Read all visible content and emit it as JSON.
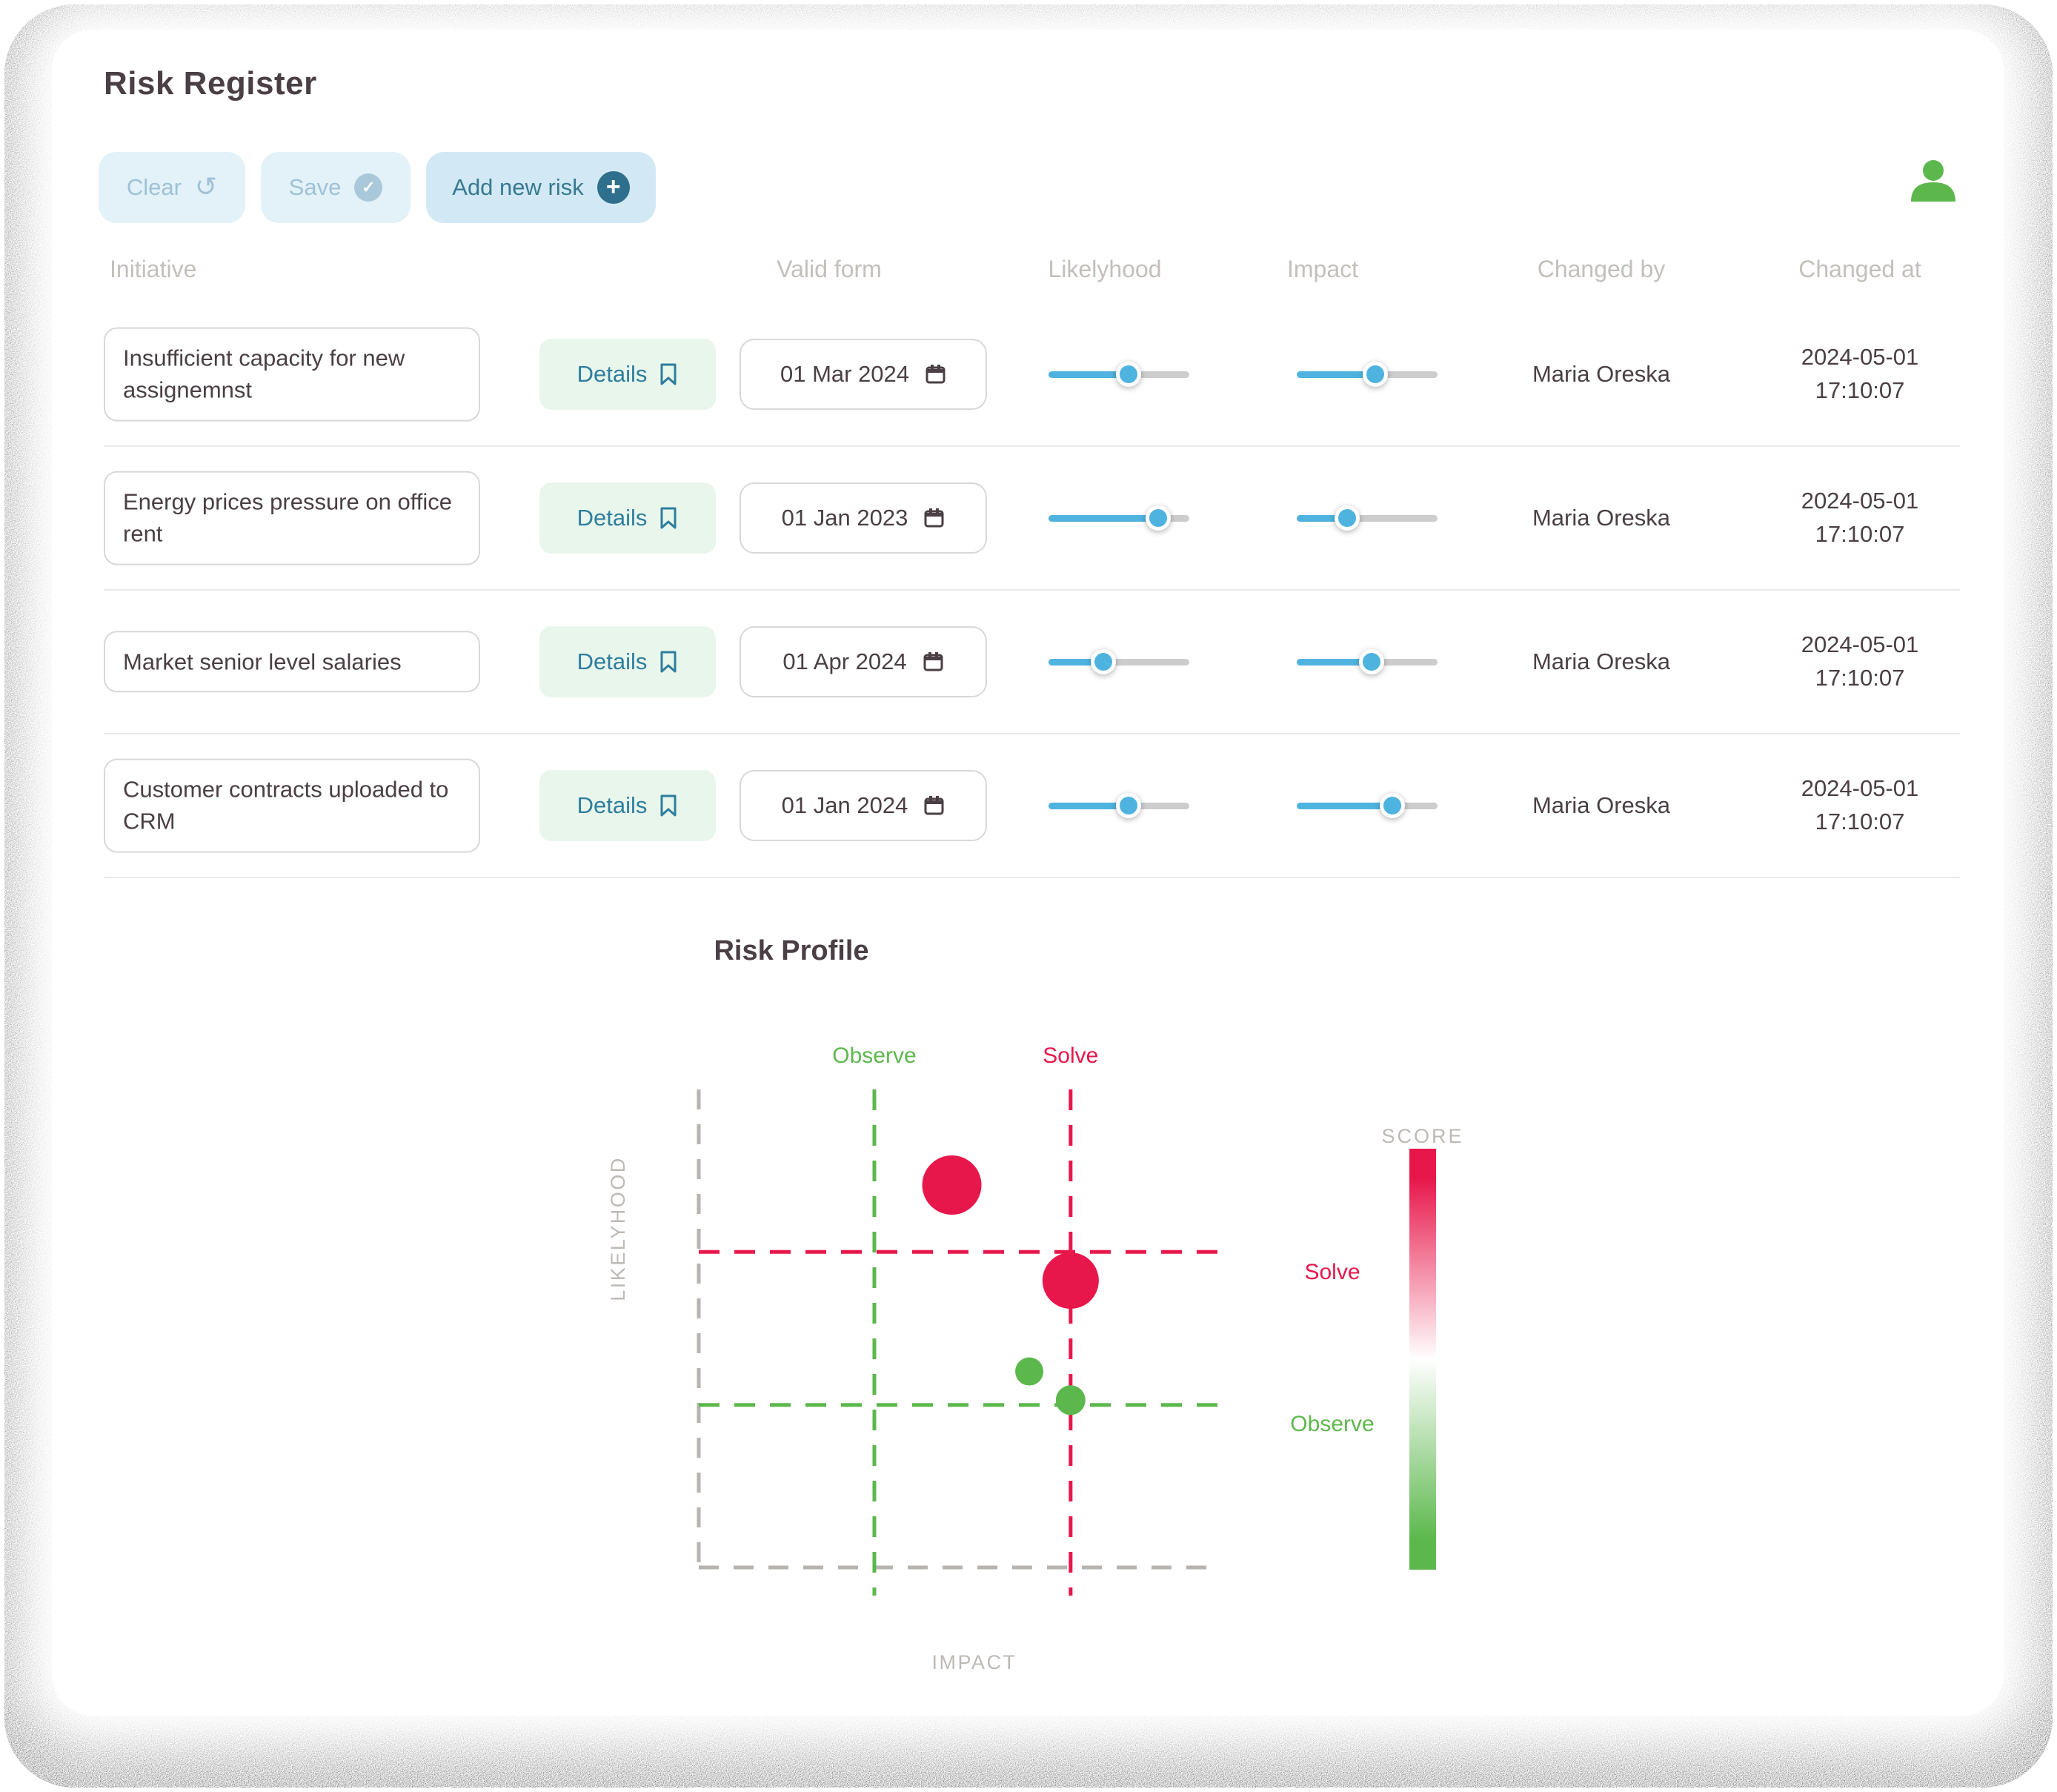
{
  "window": {
    "title": "Risk Register"
  },
  "toolbar": {
    "clear_label": "Clear",
    "save_label": "Save",
    "add_label": "Add new risk",
    "undo_glyph": "↺",
    "check_glyph": "✓",
    "plus_glyph": "+"
  },
  "table": {
    "headers": [
      "Initiative",
      "Valid form",
      "Likelyhood",
      "Impact",
      "Changed by",
      "Changed at"
    ],
    "details_label": "Details",
    "rows": [
      {
        "initiative": "Insufficient capacity for new assignemnst",
        "valid_from": "01 Mar 2024",
        "likelyhood": 57,
        "impact": 56,
        "changed_by": "Maria Oreska",
        "changed_at": "2024-05-01 17:10:07"
      },
      {
        "initiative": "Energy prices pressure on office rent",
        "valid_from": "01 Jan 2023",
        "likelyhood": 78,
        "impact": 36,
        "changed_by": "Maria Oreska",
        "changed_at": "2024-05-01 17:10:07"
      },
      {
        "initiative": "Market senior level salaries",
        "valid_from": "01 Apr 2024",
        "likelyhood": 39,
        "impact": 53,
        "changed_by": "Maria Oreska",
        "changed_at": "2024-05-01 17:10:07"
      },
      {
        "initiative": "Customer contracts uploaded to CRM",
        "valid_from": "01 Jan 2024",
        "likelyhood": 57,
        "impact": 68,
        "changed_by": "Maria Oreska",
        "changed_at": "2024-05-01 17:10:07"
      }
    ]
  },
  "chart_data": {
    "type": "scatter",
    "title": "Risk Profile",
    "xlabel": "IMPACT",
    "ylabel": "LIKELYHOOD",
    "x_range": [
      0,
      10
    ],
    "y_range": [
      0,
      10
    ],
    "grid": "dashed-quadrant-frame",
    "thresholds": {
      "observe": {
        "label": "Observe",
        "x": 3.4,
        "y": 3.4,
        "color": "#5cb84c"
      },
      "solve": {
        "label": "Solve",
        "x": 7.2,
        "y": 6.6,
        "color": "#e8174b"
      }
    },
    "points": [
      {
        "x": 4.9,
        "y": 8.0,
        "r": 40,
        "severity": "solve",
        "color": "#e8174b"
      },
      {
        "x": 7.2,
        "y": 6.0,
        "r": 38,
        "severity": "solve",
        "color": "#e8174b"
      },
      {
        "x": 6.4,
        "y": 4.1,
        "r": 19,
        "severity": "observe",
        "color": "#5cb84c"
      },
      {
        "x": 7.2,
        "y": 3.5,
        "r": 20,
        "severity": "observe",
        "color": "#5cb84c"
      }
    ],
    "legend": {
      "title": "SCORE",
      "high_label": "Solve",
      "low_label": "Observe",
      "gradient": [
        "#e8174b",
        "#ffffff",
        "#5cb84c"
      ],
      "position": "right"
    }
  },
  "colors": {
    "accent_blue": "#4fb3e0",
    "teal": "#2e7e9e",
    "green": "#5cb84c",
    "red": "#e8174b",
    "button_bg": "#e3f1f9",
    "add_button_bg": "#d2e9f5",
    "details_bg": "#e9f6ec",
    "muted_text": "#c3bfbb",
    "dark_text": "#4a3f45"
  }
}
